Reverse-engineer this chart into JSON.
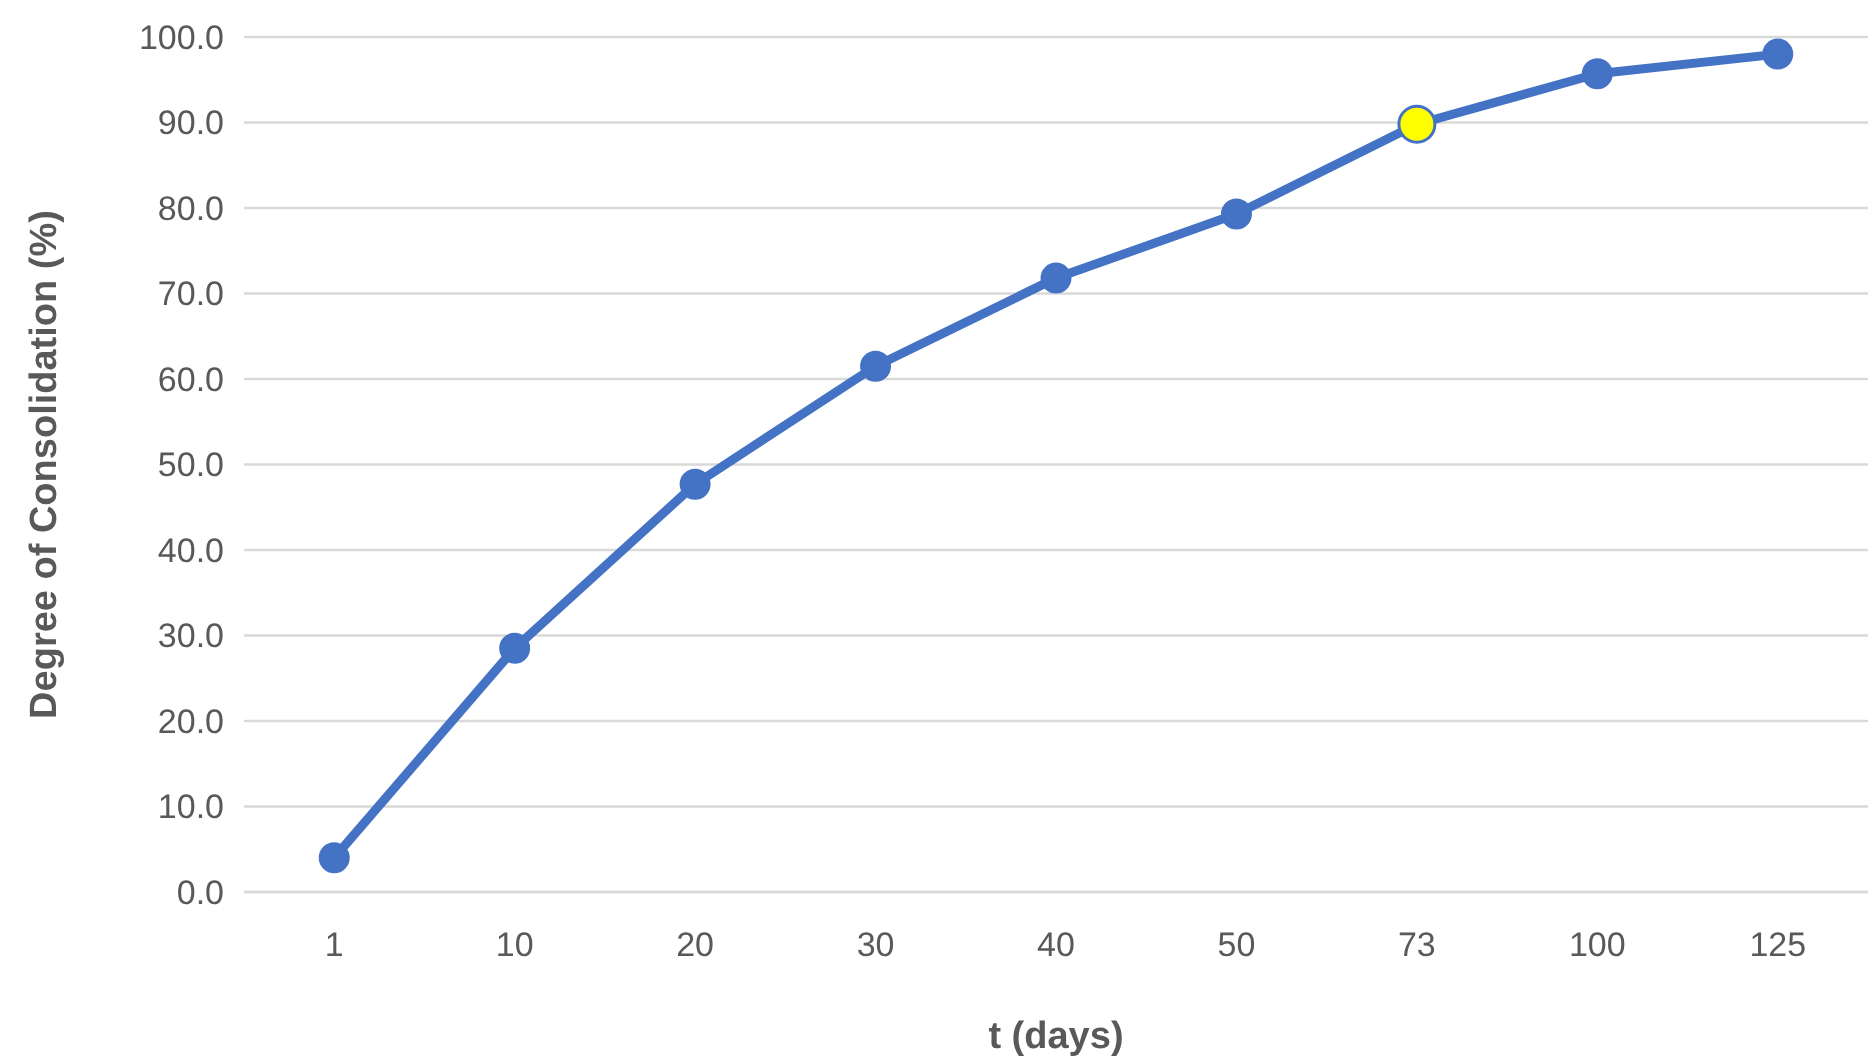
{
  "chart_data": {
    "type": "line",
    "xlabel": "t (days)",
    "ylabel": "Degree of Consolidation (%)",
    "categories": [
      "1",
      "10",
      "20",
      "30",
      "40",
      "50",
      "73",
      "100",
      "125"
    ],
    "series": [
      {
        "color": "#4472c4",
        "colors": [
          "#4472c4",
          "#4472c4",
          "#4472c4",
          "#4472c4",
          "#4472c4",
          "#4472c4",
          "#ffff00",
          "#4472c4",
          "#4472c4"
        ],
        "values": [
          4.0,
          28.5,
          47.7,
          61.5,
          71.8,
          79.3,
          89.8,
          95.7,
          98.0
        ]
      }
    ],
    "ylim": [
      0,
      100
    ],
    "yticks": [
      {
        "value": 0,
        "label": "0.0"
      },
      {
        "value": 10,
        "label": "10.0"
      },
      {
        "value": 20,
        "label": "20.0"
      },
      {
        "value": 30,
        "label": "30.0"
      },
      {
        "value": 40,
        "label": "40.0"
      },
      {
        "value": 50,
        "label": "50.0"
      },
      {
        "value": 60,
        "label": "60.0"
      },
      {
        "value": 70,
        "label": "70.0"
      },
      {
        "value": 80,
        "label": "80.0"
      },
      {
        "value": 90,
        "label": "90.0"
      },
      {
        "value": 100,
        "label": "100.0"
      }
    ],
    "grid": "y",
    "marker": "circle",
    "line_style": "solid"
  }
}
